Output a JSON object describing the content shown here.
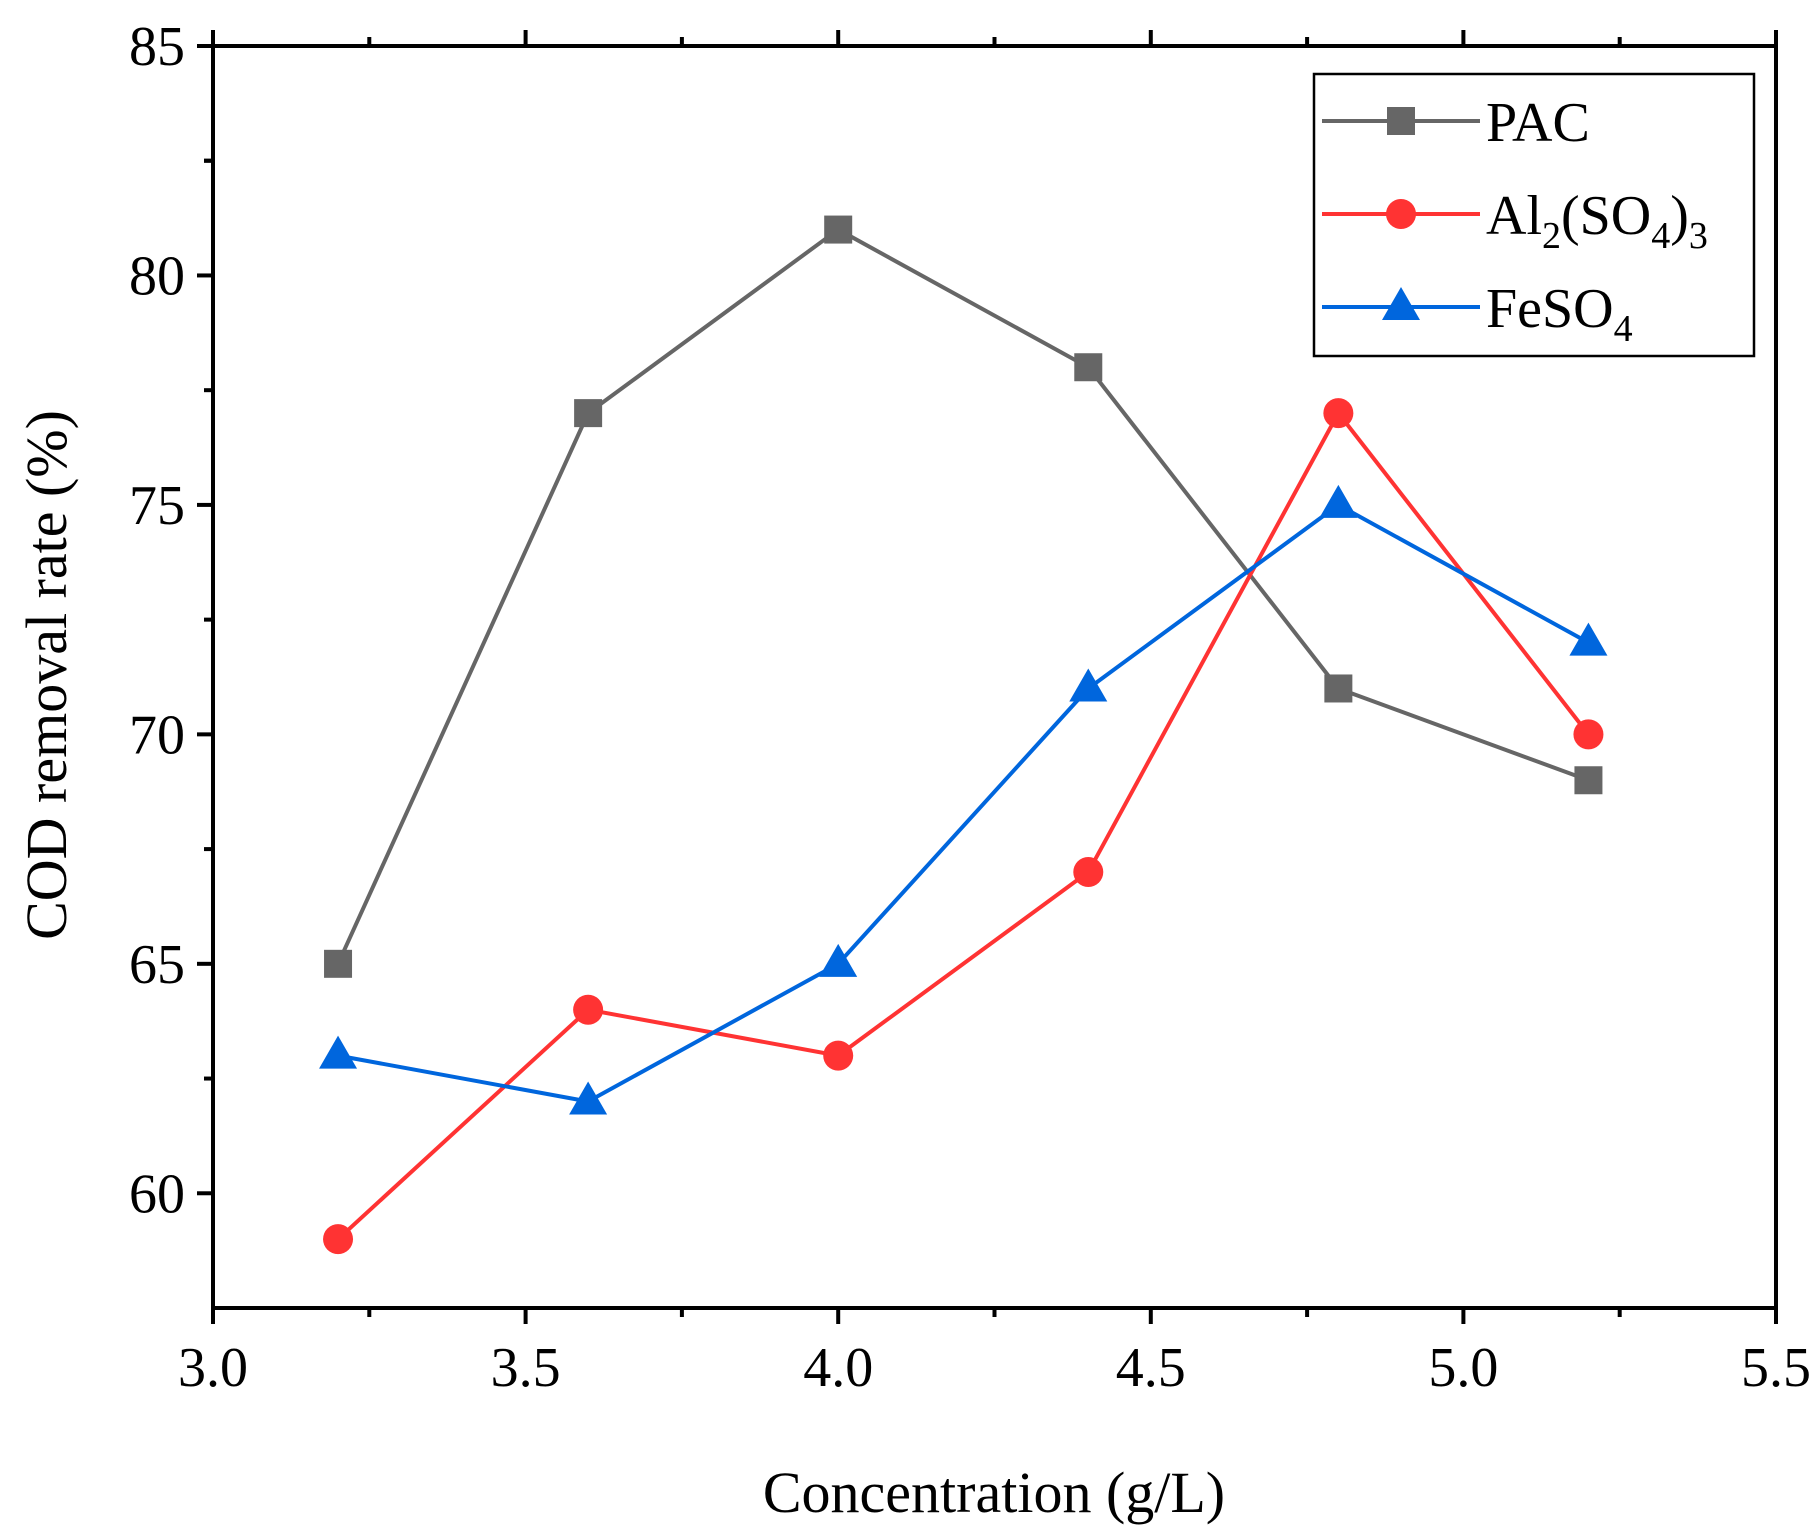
{
  "chart_data": {
    "type": "line",
    "title": "",
    "xlabel": "Concentration (g/L)",
    "ylabel": "COD removal rate (%)",
    "xlim": [
      3.0,
      5.5
    ],
    "ylim": [
      57.5,
      85
    ],
    "xticks": [
      3.0,
      3.5,
      4.0,
      4.5,
      5.0,
      5.5
    ],
    "xtick_labels": [
      "3.0",
      "3.5",
      "4.0",
      "4.5",
      "5.0",
      "5.5"
    ],
    "yticks": [
      60,
      65,
      70,
      75,
      80,
      85
    ],
    "ytick_labels": [
      "60",
      "65",
      "70",
      "75",
      "80",
      "85"
    ],
    "grid": false,
    "legend_position": "top-right",
    "x": [
      3.2,
      3.6,
      4.0,
      4.4,
      4.8,
      5.2
    ],
    "series": [
      {
        "name": "PAC",
        "legend_parts": [
          [
            "PAC",
            ""
          ]
        ],
        "marker": "square",
        "color": "#666666",
        "values": [
          65,
          77,
          81,
          78,
          71,
          69
        ]
      },
      {
        "name": "Al2(SO4)3",
        "legend_parts": [
          [
            "Al",
            ""
          ],
          [
            "2",
            "sub"
          ],
          [
            "(SO",
            ""
          ],
          [
            "4",
            "sub"
          ],
          [
            ")",
            ""
          ],
          [
            "3",
            "sub"
          ]
        ],
        "marker": "circle",
        "color": "#ff3333",
        "values": [
          59,
          64,
          63,
          67,
          77,
          70
        ]
      },
      {
        "name": "FeSO4",
        "legend_parts": [
          [
            "FeSO",
            ""
          ],
          [
            "4",
            "sub"
          ]
        ],
        "marker": "triangle",
        "color": "#0066dd",
        "values": [
          63,
          62,
          65,
          71,
          75,
          72
        ]
      }
    ]
  }
}
